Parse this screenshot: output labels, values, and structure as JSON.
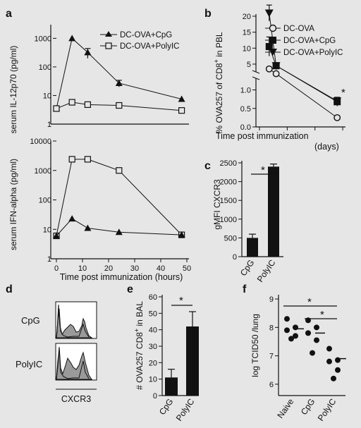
{
  "chart_data": [
    {
      "panel": "a",
      "type": "line",
      "ylabel": "serum IL-12p70 (pg/ml)",
      "yscale": "log",
      "ylim": [
        1,
        3000
      ],
      "xlim": [
        0,
        50
      ],
      "yticks": [
        1,
        10,
        100,
        1000
      ],
      "ytick_labels": [
        "1",
        "10",
        "100",
        "1000"
      ],
      "legend": "top-right",
      "series": [
        {
          "name": "DC-OVA+CpG",
          "marker": "triangle-filled",
          "x": [
            0,
            6,
            12,
            24,
            48
          ],
          "y": [
            3.5,
            1000,
            320,
            27,
            7.5
          ],
          "err": [
            0,
            0,
            120,
            7,
            0
          ]
        },
        {
          "name": "DC-OVA+PolyIC",
          "marker": "square-open",
          "x": [
            0,
            6,
            12,
            24,
            48
          ],
          "y": [
            3.5,
            5.8,
            4.8,
            4.5,
            3.0
          ],
          "err": [
            0,
            0,
            0,
            0,
            0
          ]
        }
      ]
    },
    {
      "panel": "a-bottom",
      "type": "line",
      "ylabel": "serum IFN-alpha (pg/ml)",
      "xlabel": "Time post immunization (hours)",
      "yscale": "log",
      "ylim": [
        1,
        10000
      ],
      "xlim": [
        0,
        50
      ],
      "xticks": [
        0,
        10,
        20,
        30,
        40,
        50
      ],
      "yticks": [
        1,
        10,
        100,
        1000,
        10000
      ],
      "ytick_labels": [
        "1",
        "10",
        "100",
        "1000",
        "10000"
      ],
      "series": [
        {
          "name": "DC-OVA+PolyIC",
          "marker": "square-open",
          "x": [
            0,
            6,
            12,
            24,
            48
          ],
          "y": [
            6,
            2400,
            2400,
            1000,
            6.5
          ]
        },
        {
          "name": "DC-OVA+CpG",
          "marker": "triangle-filled",
          "x": [
            0,
            6,
            12,
            24,
            48
          ],
          "y": [
            6,
            23,
            11,
            8,
            6.5
          ]
        }
      ]
    },
    {
      "panel": "b",
      "type": "line",
      "ylabel": "% OVA257 of CD8+ in PBL",
      "xlabel": "Time post immunization",
      "xlabel_unit": "(days)",
      "xlim": [
        0,
        62
      ],
      "xticks": [
        0,
        20,
        40,
        60
      ],
      "yticks": [
        0.0,
        0.5,
        1.0,
        5,
        10,
        15,
        20
      ],
      "ytick_labels": [
        "0.0",
        "0.5",
        "1.0",
        "5",
        "10",
        "15",
        "20"
      ],
      "axis_break": true,
      "annotation": "*",
      "legend": "top-right",
      "series": [
        {
          "name": "DC-OVA",
          "marker": "circle-open",
          "x": [
            7,
            12,
            56
          ],
          "y": [
            3.5,
            2.0,
            0.25
          ],
          "err": [
            0.5,
            0.3,
            0.05
          ]
        },
        {
          "name": "DC-OVA+CpG",
          "marker": "square-filled",
          "x": [
            7,
            12,
            56
          ],
          "y": [
            10.5,
            4.5,
            0.68
          ],
          "err": [
            3.0,
            0.5,
            0.12
          ]
        },
        {
          "name": "DC-OVA+PolyIC",
          "marker": "triangle-down-filled",
          "x": [
            7,
            12,
            56
          ],
          "y": [
            21,
            4.5,
            0.7
          ],
          "err": [
            2.5,
            0.5,
            0.1
          ]
        }
      ]
    },
    {
      "panel": "c",
      "type": "bar",
      "ylabel": "gMFI CXCR3",
      "ylim": [
        0,
        2500
      ],
      "yticks": [
        0,
        500,
        1000,
        1500,
        2000,
        2500
      ],
      "categories": [
        "CpG",
        "PolyIC"
      ],
      "values": [
        500,
        2400
      ],
      "err": [
        100,
        70
      ],
      "annotation": "*"
    },
    {
      "panel": "d",
      "type": "histogram",
      "xlabel": "CXCR3",
      "rows": [
        "CpG",
        "PolyIC"
      ]
    },
    {
      "panel": "e",
      "type": "bar",
      "ylabel": "# OVA257 CD8+ in BAL",
      "ylim": [
        0,
        60
      ],
      "yticks": [
        0,
        10,
        20,
        30,
        40,
        50,
        60
      ],
      "categories": [
        "CpG",
        "PolyIC"
      ],
      "values": [
        11,
        42
      ],
      "err": [
        5,
        9
      ],
      "annotation": "*"
    },
    {
      "panel": "f",
      "type": "scatter",
      "ylabel": "log TCID50 /lung",
      "ylim": [
        5.6,
        9.1
      ],
      "yticks": [
        6,
        7,
        8,
        9
      ],
      "categories": [
        "Naive",
        "CpG",
        "PolyIC"
      ],
      "points": [
        [
          8.3,
          8.0,
          7.9,
          7.7,
          7.6
        ],
        [
          8.25,
          8.0,
          7.8,
          7.55,
          7.1
        ],
        [
          7.25,
          6.85,
          6.8,
          6.5,
          6.2
        ]
      ],
      "means": [
        7.95,
        7.8,
        6.9
      ],
      "annotations": [
        "*",
        "*"
      ]
    }
  ],
  "labels": {
    "a": "a",
    "b": "b",
    "c": "c",
    "d": "d",
    "e": "e",
    "f": "f",
    "a_ylabel_top": "serum IL-12p70 (pg/ml)",
    "a_ylabel_bottom": "serum IFN-alpha (pg/ml)",
    "a_xlabel": "Time post immunization (hours)",
    "a_leg1": "DC-OVA+CpG",
    "a_leg2": "DC-OVA+PolyIC",
    "b_ylabel": "% OVA257 of CD8",
    "b_ylabel_sup": "+",
    "b_ylabel_end": " in PBL",
    "b_xlabel": "Time post immunization",
    "b_xunit": "(days)",
    "b_leg1": "DC-OVA",
    "b_leg2": "DC-OVA+CpG",
    "b_leg3": "DC-OVA+PolyIC",
    "star": "*",
    "c_ylabel": "gMFI CXCR3",
    "cat_cpg": "CpG",
    "cat_polyic": "PolyIC",
    "cat_naive": "Naive",
    "d_xlabel": "CXCR3",
    "e_ylabel": "# OVA257 CD8",
    "e_ylabel_sup": "+",
    "e_ylabel_end": " in BAL",
    "f_ylabel": "log TCID50 /lung"
  },
  "colors": {
    "ink": "#111111",
    "bar": "#111111",
    "hist_fill": "#9a9a9a",
    "background": "#e6e6e6"
  }
}
